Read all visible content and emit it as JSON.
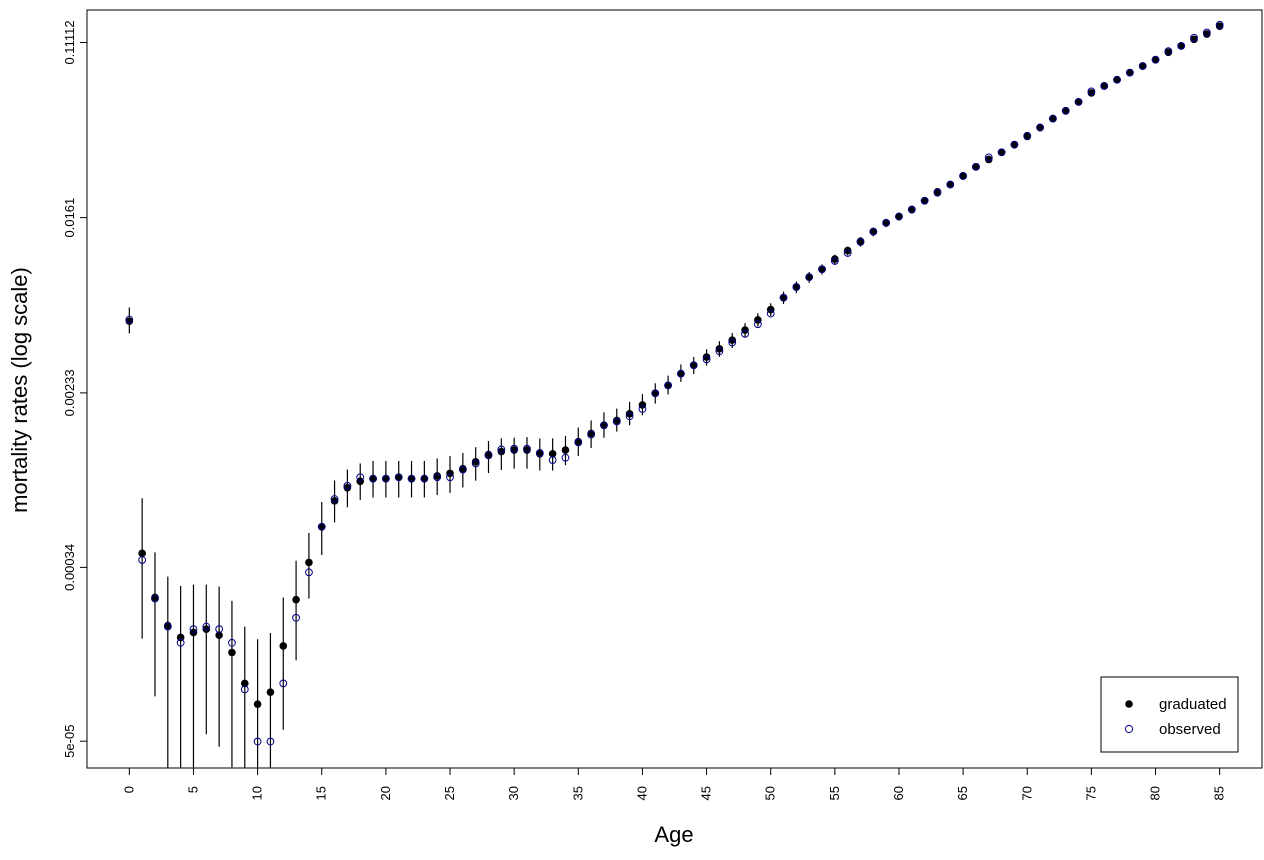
{
  "chart_data": {
    "type": "scatter",
    "xlabel": "Age",
    "ylabel": "mortality rates (log scale)",
    "y_scale": "log",
    "xlim": [
      -3.3,
      88.3
    ],
    "ylim": [
      3.72e-05,
      0.159
    ],
    "x_ticks": [
      0,
      5,
      10,
      15,
      20,
      25,
      30,
      35,
      40,
      45,
      50,
      55,
      60,
      65,
      70,
      75,
      80,
      85
    ],
    "x_tick_labels": [
      "0",
      "5",
      "10",
      "15",
      "20",
      "25",
      "30",
      "35",
      "40",
      "45",
      "50",
      "55",
      "60",
      "65",
      "70",
      "75",
      "80",
      "85"
    ],
    "y_ticks": [
      5e-05,
      0.00034,
      0.00233,
      0.0161,
      0.11112
    ],
    "y_tick_labels": [
      "5e-05",
      "0.00034",
      "0.00233",
      "0.0161",
      "0.11112"
    ],
    "legend": {
      "position": "bottom-right",
      "entries": [
        "graduated",
        "observed"
      ]
    },
    "colors": {
      "graduated": "#000000",
      "observed": "#00008b",
      "errorbar": "#000000"
    },
    "x": [
      0,
      1,
      2,
      3,
      4,
      5,
      6,
      7,
      8,
      9,
      10,
      11,
      12,
      13,
      14,
      15,
      16,
      17,
      18,
      19,
      20,
      21,
      22,
      23,
      24,
      25,
      26,
      27,
      28,
      29,
      30,
      31,
      32,
      33,
      34,
      35,
      36,
      37,
      38,
      39,
      40,
      41,
      42,
      43,
      44,
      45,
      46,
      47,
      48,
      49,
      50,
      51,
      52,
      53,
      54,
      55,
      56,
      57,
      58,
      59,
      60,
      61,
      62,
      63,
      64,
      65,
      66,
      67,
      68,
      69,
      70,
      71,
      72,
      73,
      74,
      75,
      76,
      77,
      78,
      79,
      80,
      81,
      82,
      83,
      84,
      85
    ],
    "series": [
      {
        "name": "graduated",
        "values": [
          0.00514,
          0.000397,
          0.000244,
          0.000179,
          0.000157,
          0.000166,
          0.000172,
          0.000161,
          0.000133,
          9.46e-05,
          7.52e-05,
          8.58e-05,
          0.000143,
          0.000238,
          0.000359,
          0.000532,
          0.000708,
          0.000818,
          0.000879,
          0.000905,
          0.000905,
          0.000919,
          0.000905,
          0.000905,
          0.000932,
          0.000959,
          0.00101,
          0.00109,
          0.00118,
          0.00122,
          0.00124,
          0.00124,
          0.00119,
          0.00119,
          0.00124,
          0.00136,
          0.00149,
          0.00163,
          0.00172,
          0.00185,
          0.00204,
          0.00232,
          0.00253,
          0.00288,
          0.00316,
          0.00346,
          0.00379,
          0.00417,
          0.00466,
          0.00521,
          0.00584,
          0.00666,
          0.00749,
          0.00835,
          0.00911,
          0.0102,
          0.0112,
          0.0124,
          0.0138,
          0.0152,
          0.0163,
          0.0176,
          0.0194,
          0.0214,
          0.0232,
          0.0255,
          0.0282,
          0.0306,
          0.0331,
          0.036,
          0.0394,
          0.0435,
          0.048,
          0.0523,
          0.0577,
          0.0637,
          0.0688,
          0.0737,
          0.0797,
          0.0857,
          0.0919,
          0.0997,
          0.107,
          0.115,
          0.122,
          0.133
        ],
        "lower": [
          0.00449,
          0.000155,
          8.2e-05,
          3.6e-05,
          2.8e-05,
          3.7e-05,
          5.4e-05,
          4.7e-05,
          3.75e-05,
          3.72e-05,
          3.72e-05,
          3.72e-05,
          5.67e-05,
          0.000122,
          0.000241,
          0.00039,
          0.000559,
          0.00066,
          0.000716,
          0.000735,
          0.000735,
          0.000735,
          0.000735,
          0.000735,
          0.000755,
          0.000774,
          0.000821,
          0.000885,
          0.000962,
          0.000995,
          0.00101,
          0.00101,
          0.00099,
          0.00099,
          0.00105,
          0.00116,
          0.00127,
          0.00142,
          0.00152,
          0.00163,
          0.00182,
          0.00207,
          0.00229,
          0.00263,
          0.00287,
          0.00315,
          0.00347,
          0.00382,
          0.00429,
          0.00484,
          0.00544,
          0.00621,
          0.007,
          0.00784,
          0.00859,
          0.00958,
          0.0106,
          0.0117,
          0.0131,
          0.0145,
          0.0156,
          0.0169,
          0.0186,
          0.0205,
          0.0223,
          0.0245,
          0.0271,
          0.0296,
          0.032,
          0.0349,
          0.0382,
          0.0421,
          0.0465,
          0.0508,
          0.0561,
          0.062,
          0.0672,
          0.0719,
          0.0779,
          0.0838,
          0.0898,
          0.0976,
          0.105,
          0.113,
          0.12,
          0.131
        ],
        "upper": [
          0.00598,
          0.000729,
          0.000401,
          0.000307,
          0.000277,
          0.000281,
          0.000281,
          0.000275,
          0.000235,
          0.000177,
          0.000154,
          0.000165,
          0.000244,
          0.000366,
          0.000497,
          0.000699,
          0.000887,
          0.001,
          0.00107,
          0.0011,
          0.0011,
          0.0011,
          0.0011,
          0.0011,
          0.00113,
          0.00116,
          0.0012,
          0.00128,
          0.00137,
          0.00141,
          0.00142,
          0.00143,
          0.00141,
          0.00141,
          0.00145,
          0.00159,
          0.00172,
          0.00188,
          0.00196,
          0.00211,
          0.0023,
          0.00259,
          0.00282,
          0.00319,
          0.00346,
          0.00377,
          0.00412,
          0.00451,
          0.00503,
          0.00561,
          0.00626,
          0.00712,
          0.00796,
          0.00884,
          0.00962,
          0.0107,
          0.0117,
          0.013,
          0.0144,
          0.0159,
          0.017,
          0.0183,
          0.0202,
          0.0222,
          0.024,
          0.0263,
          0.0291,
          0.0315,
          0.034,
          0.037,
          0.0405,
          0.0447,
          0.0492,
          0.0537,
          0.0592,
          0.0652,
          0.0705,
          0.0755,
          0.0815,
          0.0876,
          0.0941,
          0.102,
          0.109,
          0.117,
          0.124,
          0.135
        ]
      },
      {
        "name": "observed",
        "values": [
          0.00523,
          0.000369,
          0.000241,
          0.000177,
          0.000148,
          0.000172,
          0.000177,
          0.000172,
          0.000148,
          8.85e-05,
          4.98e-05,
          4.98e-05,
          9.46e-05,
          0.000195,
          0.000322,
          0.000532,
          0.000723,
          0.000835,
          0.000919,
          0.000905,
          0.000905,
          0.000919,
          0.000905,
          0.000905,
          0.000919,
          0.000919,
          0.001,
          0.00107,
          0.00117,
          0.00125,
          0.00126,
          0.00126,
          0.0012,
          0.00111,
          0.00114,
          0.00135,
          0.00147,
          0.00163,
          0.0017,
          0.0018,
          0.00195,
          0.00232,
          0.00253,
          0.00288,
          0.00316,
          0.00337,
          0.00369,
          0.00406,
          0.00447,
          0.00497,
          0.00559,
          0.00666,
          0.00749,
          0.00835,
          0.00911,
          0.00998,
          0.0109,
          0.0123,
          0.0138,
          0.0152,
          0.0163,
          0.0176,
          0.0194,
          0.0212,
          0.0232,
          0.0255,
          0.0282,
          0.0313,
          0.0331,
          0.036,
          0.0397,
          0.0435,
          0.048,
          0.0523,
          0.0577,
          0.0648,
          0.0688,
          0.0737,
          0.0797,
          0.0857,
          0.0919,
          0.101,
          0.107,
          0.117,
          0.124,
          0.135
        ]
      }
    ]
  }
}
